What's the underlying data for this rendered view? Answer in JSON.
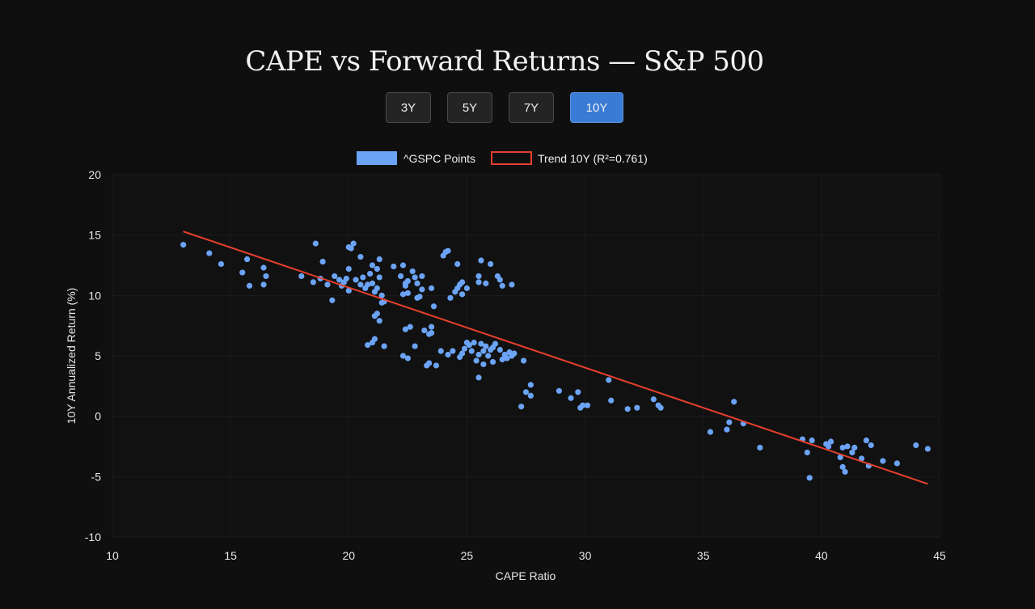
{
  "title": "CAPE vs Forward Returns — S&P 500",
  "horizons": [
    "3Y",
    "5Y",
    "7Y",
    "10Y"
  ],
  "active_horizon": "10Y",
  "colors": {
    "points": "#6ba3f5",
    "trend": "#e8402e",
    "active_button": "#3a7bd5"
  },
  "chart_data": {
    "type": "scatter",
    "xlabel": "CAPE Ratio",
    "ylabel": "10Y Annualized Return (%)",
    "xlim": [
      10,
      45
    ],
    "ylim": [
      -10,
      20
    ],
    "x_ticks": [
      10,
      15,
      20,
      25,
      30,
      35,
      40,
      45
    ],
    "y_ticks": [
      -10,
      -5,
      0,
      5,
      10,
      15,
      20
    ],
    "legend": {
      "points_label": "^GSPC Points",
      "trend_label": "Trend 10Y (R²=0.761)",
      "position": "top-center"
    },
    "trend": {
      "x": [
        13.0,
        44.5
      ],
      "y": [
        15.3,
        -5.6
      ]
    },
    "series": [
      {
        "name": "^GSPC Points",
        "points": [
          [
            13.0,
            14.2
          ],
          [
            14.1,
            13.5
          ],
          [
            14.6,
            12.6
          ],
          [
            15.5,
            11.9
          ],
          [
            15.7,
            13.0
          ],
          [
            15.8,
            10.8
          ],
          [
            16.4,
            12.3
          ],
          [
            16.5,
            11.6
          ],
          [
            16.4,
            10.9
          ],
          [
            18.0,
            11.6
          ],
          [
            18.5,
            11.1
          ],
          [
            18.6,
            14.3
          ],
          [
            18.8,
            11.4
          ],
          [
            18.9,
            12.8
          ],
          [
            19.1,
            10.9
          ],
          [
            19.3,
            9.6
          ],
          [
            19.4,
            11.6
          ],
          [
            19.6,
            11.3
          ],
          [
            19.7,
            10.8
          ],
          [
            19.8,
            11.1
          ],
          [
            19.9,
            11.4
          ],
          [
            20.0,
            12.2
          ],
          [
            20.0,
            14.0
          ],
          [
            20.1,
            13.9
          ],
          [
            20.2,
            14.3
          ],
          [
            20.0,
            10.4
          ],
          [
            20.3,
            11.3
          ],
          [
            20.5,
            10.9
          ],
          [
            20.5,
            13.2
          ],
          [
            20.6,
            11.5
          ],
          [
            20.7,
            10.6
          ],
          [
            20.8,
            10.9
          ],
          [
            20.9,
            11.8
          ],
          [
            21.0,
            11.0
          ],
          [
            21.0,
            12.5
          ],
          [
            21.1,
            10.3
          ],
          [
            21.2,
            10.6
          ],
          [
            21.2,
            12.2
          ],
          [
            21.3,
            13.0
          ],
          [
            21.3,
            11.5
          ],
          [
            21.4,
            10.0
          ],
          [
            21.4,
            9.4
          ],
          [
            21.2,
            8.5
          ],
          [
            21.1,
            8.3
          ],
          [
            21.3,
            7.9
          ],
          [
            21.5,
            9.5
          ],
          [
            20.8,
            5.9
          ],
          [
            21.0,
            6.1
          ],
          [
            21.1,
            6.4
          ],
          [
            21.5,
            5.8
          ],
          [
            21.9,
            12.4
          ],
          [
            22.2,
            11.6
          ],
          [
            22.3,
            12.5
          ],
          [
            22.4,
            11.0
          ],
          [
            22.5,
            10.2
          ],
          [
            22.5,
            11.2
          ],
          [
            22.3,
            10.1
          ],
          [
            22.4,
            10.8
          ],
          [
            22.7,
            12.0
          ],
          [
            22.8,
            11.5
          ],
          [
            22.9,
            9.8
          ],
          [
            22.9,
            11.0
          ],
          [
            23.1,
            11.6
          ],
          [
            23.1,
            10.5
          ],
          [
            23.0,
            9.9
          ],
          [
            23.5,
            10.6
          ],
          [
            23.6,
            9.1
          ],
          [
            22.4,
            7.2
          ],
          [
            22.6,
            7.4
          ],
          [
            22.3,
            5.0
          ],
          [
            22.5,
            4.8
          ],
          [
            22.8,
            5.8
          ],
          [
            23.2,
            7.1
          ],
          [
            23.3,
            4.2
          ],
          [
            23.4,
            4.4
          ],
          [
            23.4,
            6.8
          ],
          [
            23.5,
            6.9
          ],
          [
            23.5,
            7.4
          ],
          [
            23.7,
            4.2
          ],
          [
            23.9,
            5.4
          ],
          [
            24.0,
            13.3
          ],
          [
            24.1,
            13.6
          ],
          [
            24.2,
            13.7
          ],
          [
            24.2,
            5.1
          ],
          [
            24.3,
            9.8
          ],
          [
            24.4,
            5.4
          ],
          [
            24.5,
            10.3
          ],
          [
            24.6,
            10.6
          ],
          [
            24.6,
            12.6
          ],
          [
            24.7,
            10.9
          ],
          [
            24.8,
            11.1
          ],
          [
            24.8,
            10.1
          ],
          [
            24.7,
            4.9
          ],
          [
            24.8,
            5.2
          ],
          [
            24.9,
            5.6
          ],
          [
            25.0,
            6.1
          ],
          [
            25.0,
            10.6
          ],
          [
            25.1,
            5.9
          ],
          [
            25.2,
            5.4
          ],
          [
            25.3,
            6.1
          ],
          [
            25.4,
            4.6
          ],
          [
            25.5,
            11.1
          ],
          [
            25.5,
            11.6
          ],
          [
            25.5,
            5.1
          ],
          [
            25.6,
            12.9
          ],
          [
            25.6,
            6.0
          ],
          [
            25.7,
            5.4
          ],
          [
            25.7,
            4.3
          ],
          [
            25.8,
            11.0
          ],
          [
            25.8,
            5.8
          ],
          [
            25.9,
            5.0
          ],
          [
            26.0,
            12.6
          ],
          [
            26.0,
            5.5
          ],
          [
            26.1,
            5.7
          ],
          [
            26.1,
            4.5
          ],
          [
            26.2,
            6.0
          ],
          [
            26.3,
            11.6
          ],
          [
            26.4,
            11.3
          ],
          [
            26.4,
            5.5
          ],
          [
            26.5,
            10.8
          ],
          [
            26.5,
            4.7
          ],
          [
            26.6,
            5.1
          ],
          [
            26.7,
            4.8
          ],
          [
            26.8,
            5.3
          ],
          [
            26.9,
            10.9
          ],
          [
            26.9,
            5.0
          ],
          [
            27.0,
            5.2
          ],
          [
            27.3,
            0.8
          ],
          [
            27.4,
            4.6
          ],
          [
            27.5,
            2.0
          ],
          [
            27.7,
            2.6
          ],
          [
            27.7,
            1.7
          ],
          [
            25.5,
            3.2
          ],
          [
            28.9,
            2.1
          ],
          [
            29.4,
            1.5
          ],
          [
            29.7,
            2.0
          ],
          [
            29.8,
            0.7
          ],
          [
            29.9,
            0.9
          ],
          [
            30.1,
            0.9
          ],
          [
            31.0,
            3.0
          ],
          [
            31.1,
            1.3
          ],
          [
            31.8,
            0.6
          ],
          [
            32.2,
            0.7
          ],
          [
            32.9,
            1.4
          ],
          [
            33.1,
            0.9
          ],
          [
            33.2,
            0.7
          ],
          [
            35.3,
            -1.3
          ],
          [
            36.0,
            -1.1
          ],
          [
            36.1,
            -0.5
          ],
          [
            36.3,
            1.2
          ],
          [
            36.7,
            -0.6
          ],
          [
            37.4,
            -2.6
          ],
          [
            39.2,
            -1.9
          ],
          [
            39.4,
            -3.0
          ],
          [
            39.5,
            -5.1
          ],
          [
            39.6,
            -2.0
          ],
          [
            40.2,
            -2.3
          ],
          [
            40.3,
            -2.5
          ],
          [
            40.4,
            -2.1
          ],
          [
            40.8,
            -3.4
          ],
          [
            40.9,
            -2.6
          ],
          [
            40.9,
            -4.2
          ],
          [
            41.0,
            -4.6
          ],
          [
            41.1,
            -2.5
          ],
          [
            41.3,
            -3.0
          ],
          [
            41.4,
            -2.6
          ],
          [
            41.7,
            -3.5
          ],
          [
            41.9,
            -2.0
          ],
          [
            42.0,
            -4.1
          ],
          [
            42.1,
            -2.4
          ],
          [
            42.6,
            -3.7
          ],
          [
            43.2,
            -3.9
          ],
          [
            44.0,
            -2.4
          ],
          [
            44.5,
            -2.7
          ]
        ]
      }
    ]
  }
}
